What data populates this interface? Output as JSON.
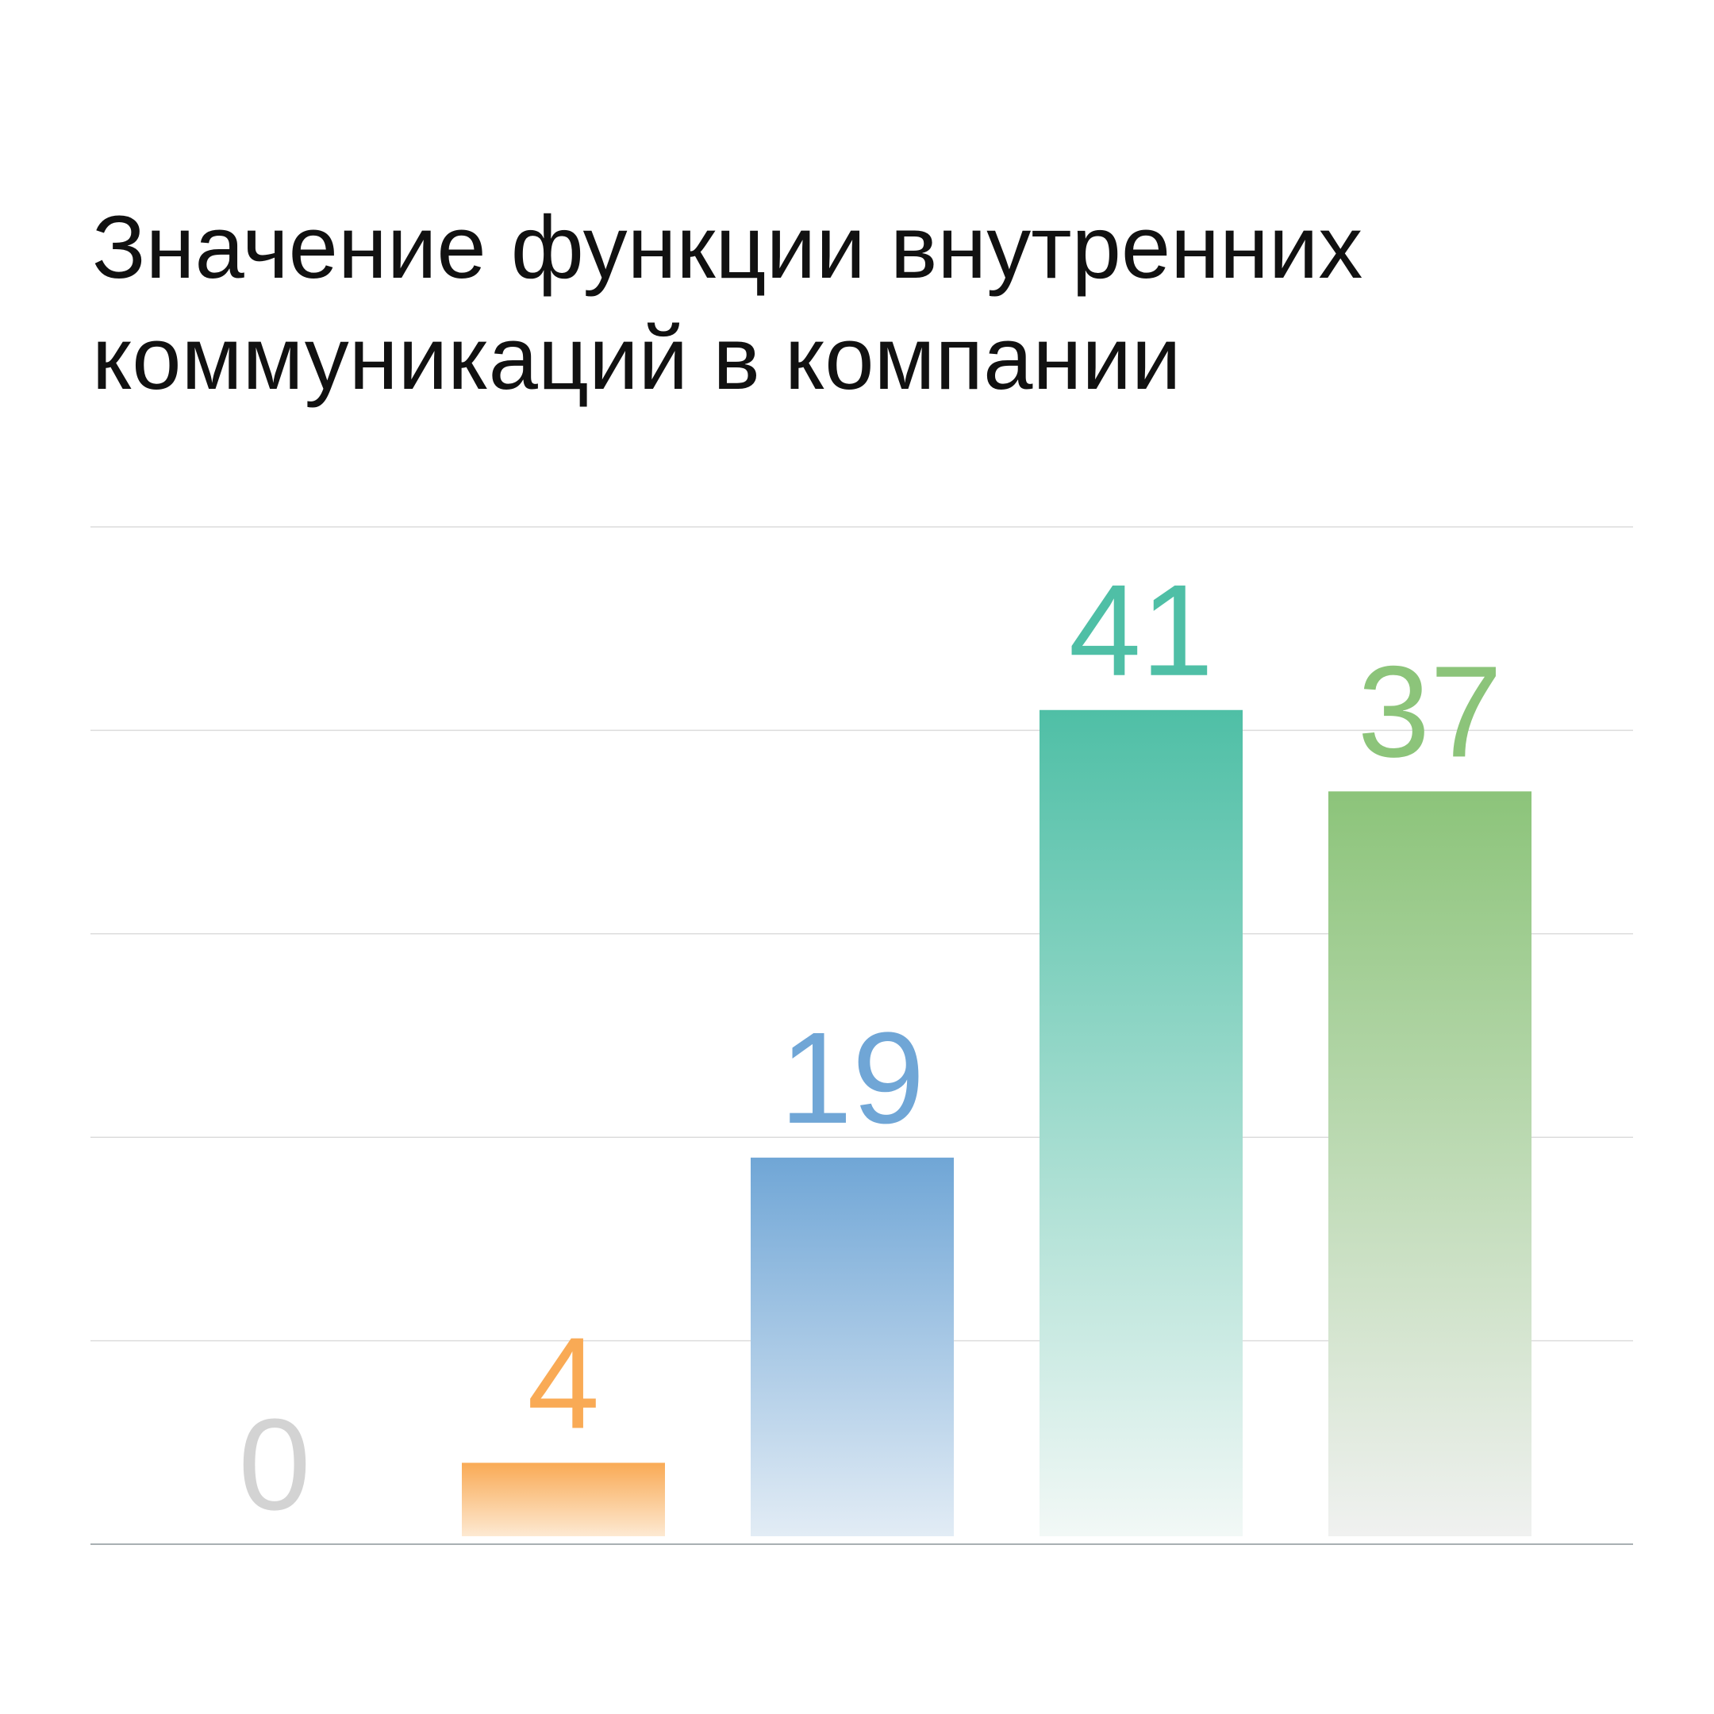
{
  "chart_data": {
    "type": "bar",
    "title": "Значение функции внутренних коммуникаций в компании",
    "categories": [
      "",
      "",
      "",
      "",
      ""
    ],
    "values": [
      0,
      4,
      19,
      41,
      37
    ],
    "value_labels": [
      "0",
      "4",
      "19",
      "41",
      "37"
    ],
    "colors": [
      "#d3d3d3",
      "#f9aa55",
      "#70a6d6",
      "#4fbfa6",
      "#8cc47a"
    ],
    "fade_colors": [
      "#f2f2f2",
      "#fde9d2",
      "#e2ecf5",
      "#f2f8f6",
      "#f0f1f0"
    ],
    "ylim": [
      0,
      50
    ],
    "gridlines": [
      0,
      10,
      20,
      30,
      40,
      50
    ],
    "grid": true,
    "legend": "none",
    "xlabel": "",
    "ylabel": ""
  }
}
